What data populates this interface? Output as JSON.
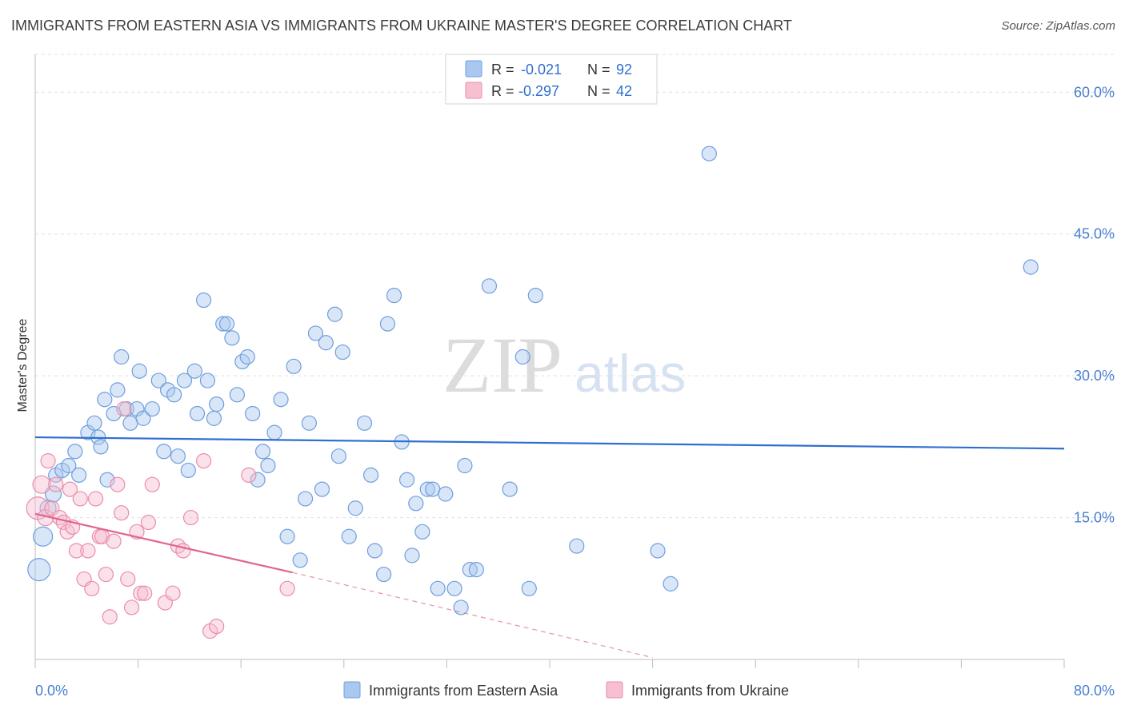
{
  "title": "IMMIGRANTS FROM EASTERN ASIA VS IMMIGRANTS FROM UKRAINE MASTER'S DEGREE CORRELATION CHART",
  "source": "Source: ZipAtlas.com",
  "watermark": {
    "zip": "ZIP",
    "atlas": "atlas"
  },
  "legend": {
    "rows": [
      {
        "r_label": "R =",
        "r_value": "-0.021",
        "n_label": "N =",
        "n_value": "92"
      },
      {
        "r_label": "R =",
        "r_value": "-0.297",
        "n_label": "N =",
        "n_value": "42"
      }
    ]
  },
  "chart_data": {
    "type": "scatter",
    "title": "IMMIGRANTS FROM EASTERN ASIA VS IMMIGRANTS FROM UKRAINE MASTER'S DEGREE CORRELATION CHART",
    "xlabel": "",
    "ylabel": "Master's Degree",
    "xlim": [
      0,
      80
    ],
    "ylim": [
      0,
      64
    ],
    "x_tick_labels": [
      "0.0%",
      "80.0%"
    ],
    "y_ticks": [
      15,
      30,
      45,
      60
    ],
    "y_tick_labels": [
      "15.0%",
      "30.0%",
      "45.0%",
      "60.0%"
    ],
    "grid": true,
    "legend_position": "top-center",
    "series": [
      {
        "name": "Immigrants from Eastern Asia",
        "color": "#a9c8f0",
        "stroke": "#6f9fdc",
        "trend": {
          "x": [
            0,
            80
          ],
          "y": [
            23.5,
            22.3
          ],
          "color": "#2f6fd0"
        },
        "points": [
          [
            0.3,
            9.5,
            14
          ],
          [
            0.6,
            13,
            12
          ],
          [
            1,
            16,
            10
          ],
          [
            1.4,
            17.5,
            10
          ],
          [
            1.6,
            19.5,
            9
          ],
          [
            2.1,
            20,
            9
          ],
          [
            2.6,
            20.5,
            9
          ],
          [
            3.1,
            22,
            9
          ],
          [
            3.4,
            19.5,
            9
          ],
          [
            4.1,
            24,
            9
          ],
          [
            4.6,
            25,
            9
          ],
          [
            4.9,
            23.5,
            9
          ],
          [
            5.1,
            22.5,
            9
          ],
          [
            5.4,
            27.5,
            9
          ],
          [
            5.6,
            19,
            9
          ],
          [
            6.1,
            26,
            9
          ],
          [
            6.4,
            28.5,
            9
          ],
          [
            6.7,
            32,
            9
          ],
          [
            7.1,
            26.5,
            9
          ],
          [
            7.4,
            25,
            9
          ],
          [
            7.9,
            26.5,
            9
          ],
          [
            8.1,
            30.5,
            9
          ],
          [
            8.4,
            25.5,
            9
          ],
          [
            9.1,
            26.5,
            9
          ],
          [
            9.6,
            29.5,
            9
          ],
          [
            10.0,
            22,
            9
          ],
          [
            10.3,
            28.5,
            9
          ],
          [
            10.8,
            28,
            9
          ],
          [
            11.1,
            21.5,
            9
          ],
          [
            11.6,
            29.5,
            9
          ],
          [
            11.9,
            20,
            9
          ],
          [
            12.4,
            30.5,
            9
          ],
          [
            12.6,
            26,
            9
          ],
          [
            13.1,
            38,
            9
          ],
          [
            13.4,
            29.5,
            9
          ],
          [
            13.9,
            25.5,
            9
          ],
          [
            14.1,
            27,
            9
          ],
          [
            14.6,
            35.5,
            9
          ],
          [
            14.9,
            35.5,
            9
          ],
          [
            15.3,
            34,
            9
          ],
          [
            15.7,
            28,
            9
          ],
          [
            16.1,
            31.5,
            9
          ],
          [
            16.5,
            32,
            9
          ],
          [
            16.9,
            26,
            9
          ],
          [
            17.3,
            19,
            9
          ],
          [
            17.7,
            22,
            9
          ],
          [
            18.1,
            20.5,
            9
          ],
          [
            18.6,
            24,
            9
          ],
          [
            19.1,
            27.5,
            9
          ],
          [
            19.6,
            13,
            9
          ],
          [
            20.1,
            31,
            9
          ],
          [
            20.6,
            10.5,
            9
          ],
          [
            21.0,
            17,
            9
          ],
          [
            21.3,
            25,
            9
          ],
          [
            21.8,
            34.5,
            9
          ],
          [
            22.3,
            18,
            9
          ],
          [
            22.6,
            33.5,
            9
          ],
          [
            23.3,
            36.5,
            9
          ],
          [
            23.6,
            21.5,
            9
          ],
          [
            23.9,
            32.5,
            9
          ],
          [
            24.4,
            13,
            9
          ],
          [
            24.9,
            16,
            9
          ],
          [
            25.6,
            25,
            9
          ],
          [
            26.1,
            19.5,
            9
          ],
          [
            26.4,
            11.5,
            9
          ],
          [
            27.1,
            9,
            9
          ],
          [
            27.4,
            35.5,
            9
          ],
          [
            27.9,
            38.5,
            9
          ],
          [
            28.5,
            23,
            9
          ],
          [
            28.9,
            19,
            9
          ],
          [
            29.3,
            11,
            9
          ],
          [
            29.6,
            16.5,
            9
          ],
          [
            30.1,
            13.5,
            9
          ],
          [
            30.5,
            18,
            9
          ],
          [
            30.9,
            18,
            9
          ],
          [
            31.3,
            7.5,
            9
          ],
          [
            31.9,
            17.5,
            9
          ],
          [
            32.6,
            7.5,
            9
          ],
          [
            33.1,
            5.5,
            9
          ],
          [
            33.4,
            20.5,
            9
          ],
          [
            33.8,
            9.5,
            9
          ],
          [
            34.3,
            9.5,
            9
          ],
          [
            35.3,
            39.5,
            9
          ],
          [
            36.9,
            18,
            9
          ],
          [
            37.9,
            32,
            9
          ],
          [
            38.4,
            7.5,
            9
          ],
          [
            38.9,
            38.5,
            9
          ],
          [
            42.1,
            12,
            9
          ],
          [
            48.4,
            11.5,
            9
          ],
          [
            49.4,
            8,
            9
          ],
          [
            52.4,
            53.5,
            9
          ],
          [
            77.4,
            41.5,
            9
          ]
        ]
      },
      {
        "name": "Immigrants from Ukraine",
        "color": "#f7bfd0",
        "stroke": "#ea8cab",
        "trend": {
          "x": [
            0,
            20
          ],
          "y": [
            15.4,
            9.2
          ],
          "dash_to": [
            48,
            0.2
          ],
          "color": "#e0648f"
        },
        "points": [
          [
            0.2,
            16,
            14
          ],
          [
            0.5,
            18.5,
            11
          ],
          [
            0.8,
            15,
            10
          ],
          [
            1.0,
            21,
            9
          ],
          [
            1.3,
            16,
            9
          ],
          [
            1.6,
            18.5,
            9
          ],
          [
            1.9,
            15,
            9
          ],
          [
            2.2,
            14.5,
            9
          ],
          [
            2.5,
            13.5,
            9
          ],
          [
            2.7,
            18,
            9
          ],
          [
            2.9,
            14,
            9
          ],
          [
            3.2,
            11.5,
            9
          ],
          [
            3.5,
            17,
            9
          ],
          [
            3.8,
            8.5,
            9
          ],
          [
            4.1,
            11.5,
            9
          ],
          [
            4.4,
            7.5,
            9
          ],
          [
            4.7,
            17,
            9
          ],
          [
            5.0,
            13,
            9
          ],
          [
            5.2,
            13,
            9
          ],
          [
            5.5,
            9,
            9
          ],
          [
            5.8,
            4.5,
            9
          ],
          [
            6.1,
            12.5,
            9
          ],
          [
            6.4,
            18.5,
            9
          ],
          [
            6.7,
            15.5,
            9
          ],
          [
            6.9,
            26.5,
            9
          ],
          [
            7.2,
            8.5,
            9
          ],
          [
            7.5,
            5.5,
            9
          ],
          [
            7.9,
            13.5,
            9
          ],
          [
            8.2,
            7,
            9
          ],
          [
            8.5,
            7,
            9
          ],
          [
            8.8,
            14.5,
            9
          ],
          [
            9.1,
            18.5,
            9
          ],
          [
            10.1,
            6,
            9
          ],
          [
            10.7,
            7,
            9
          ],
          [
            11.1,
            12,
            9
          ],
          [
            11.5,
            11.5,
            9
          ],
          [
            12.1,
            15,
            9
          ],
          [
            13.1,
            21,
            9
          ],
          [
            13.6,
            3,
            9
          ],
          [
            14.1,
            3.5,
            9
          ],
          [
            16.6,
            19.5,
            9
          ],
          [
            19.6,
            7.5,
            9
          ]
        ]
      }
    ]
  }
}
